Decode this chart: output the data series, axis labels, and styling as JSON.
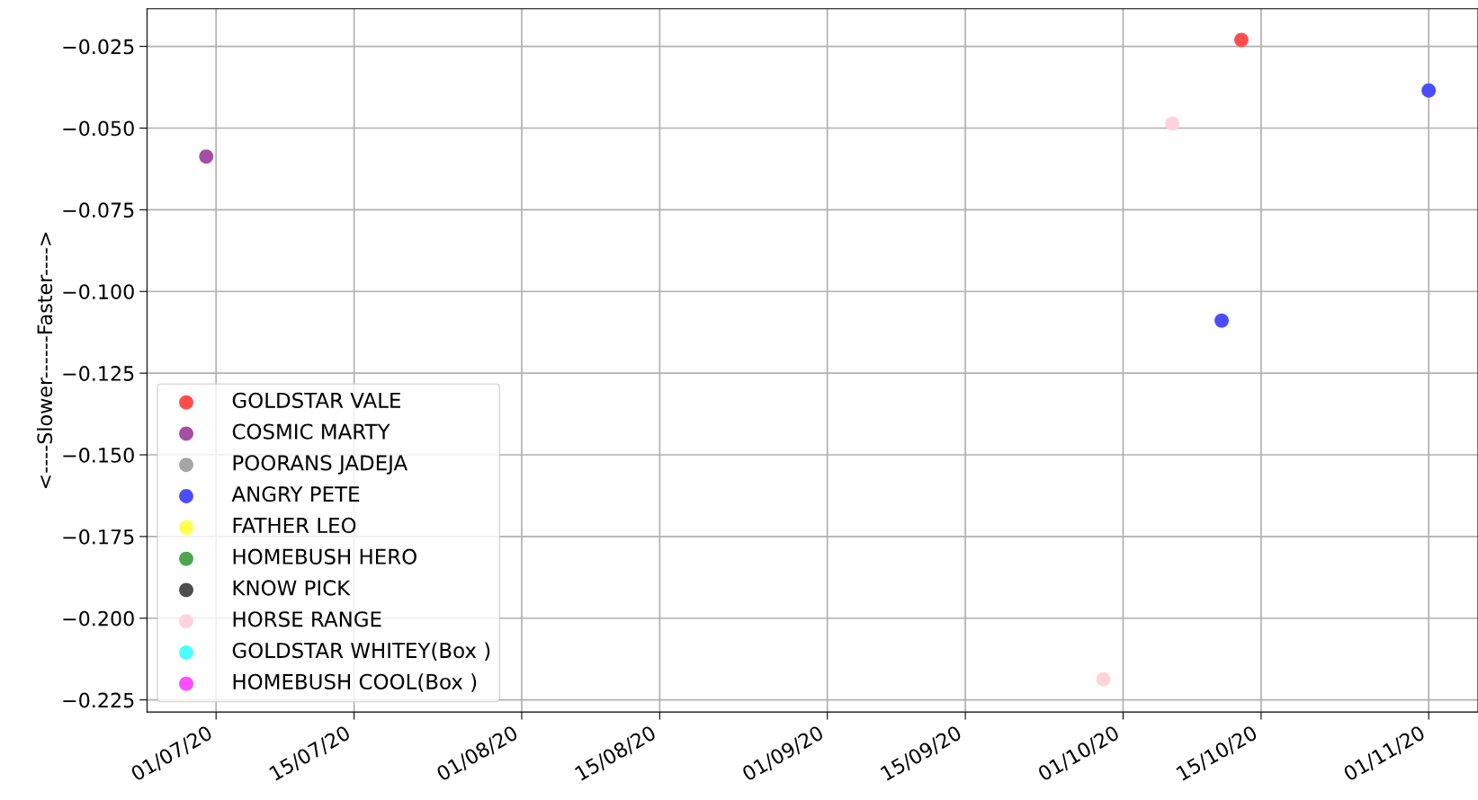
{
  "chart_data": {
    "type": "scatter",
    "ylabel": "<----Slower------Faster---->",
    "xlim": [
      "2020-06-24",
      "2020-11-06"
    ],
    "ylim": [
      -0.2287,
      -0.0135
    ],
    "xticks": [
      {
        "value": "2020-07-01",
        "label": "01/07/20"
      },
      {
        "value": "2020-07-15",
        "label": "15/07/20"
      },
      {
        "value": "2020-08-01",
        "label": "01/08/20"
      },
      {
        "value": "2020-08-15",
        "label": "15/08/20"
      },
      {
        "value": "2020-09-01",
        "label": "01/09/20"
      },
      {
        "value": "2020-09-15",
        "label": "15/09/20"
      },
      {
        "value": "2020-10-01",
        "label": "01/10/20"
      },
      {
        "value": "2020-10-15",
        "label": "15/10/20"
      },
      {
        "value": "2020-11-01",
        "label": "01/11/20"
      }
    ],
    "yticks": [
      {
        "value": -0.025,
        "label": "−0.025"
      },
      {
        "value": -0.05,
        "label": "−0.050"
      },
      {
        "value": -0.075,
        "label": "−0.075"
      },
      {
        "value": -0.1,
        "label": "−0.100"
      },
      {
        "value": -0.125,
        "label": "−0.125"
      },
      {
        "value": -0.15,
        "label": "−0.150"
      },
      {
        "value": -0.175,
        "label": "−0.175"
      },
      {
        "value": -0.2,
        "label": "−0.200"
      },
      {
        "value": -0.225,
        "label": "−0.225"
      }
    ],
    "grid": true,
    "legend": "bottom left",
    "marker": "circle",
    "series": [
      {
        "name": "GOLDSTAR VALE",
        "color": "#ff4d4d",
        "x": [
          "2020-10-13"
        ],
        "values": [
          -0.023
        ]
      },
      {
        "name": "COSMIC MARTY",
        "color": "#a64da6",
        "x": [
          "2020-06-30"
        ],
        "values": [
          -0.0587
        ]
      },
      {
        "name": "POORANS JADEJA",
        "color": "#a6a6a6"
      },
      {
        "name": "ANGRY PETE",
        "color": "#4d4dff",
        "x": [
          "2020-10-11",
          "2020-11-01"
        ],
        "values": [
          -0.1089,
          -0.0385
        ]
      },
      {
        "name": "FATHER LEO",
        "color": "#ffff4d"
      },
      {
        "name": "HOMEBUSH HERO",
        "color": "#4da64d"
      },
      {
        "name": "KNOW PICK",
        "color": "#4d4d4d"
      },
      {
        "name": "HORSE RANGE",
        "color": "#ffd3db",
        "x": [
          "2020-10-06",
          "2020-09-29"
        ],
        "values": [
          -0.0486,
          -0.2187
        ]
      },
      {
        "name": "GOLDSTAR WHITEY(Box )",
        "color": "#4dffff"
      },
      {
        "name": "HOMEBUSH COOL(Box )",
        "color": "#ff4dff"
      }
    ]
  }
}
